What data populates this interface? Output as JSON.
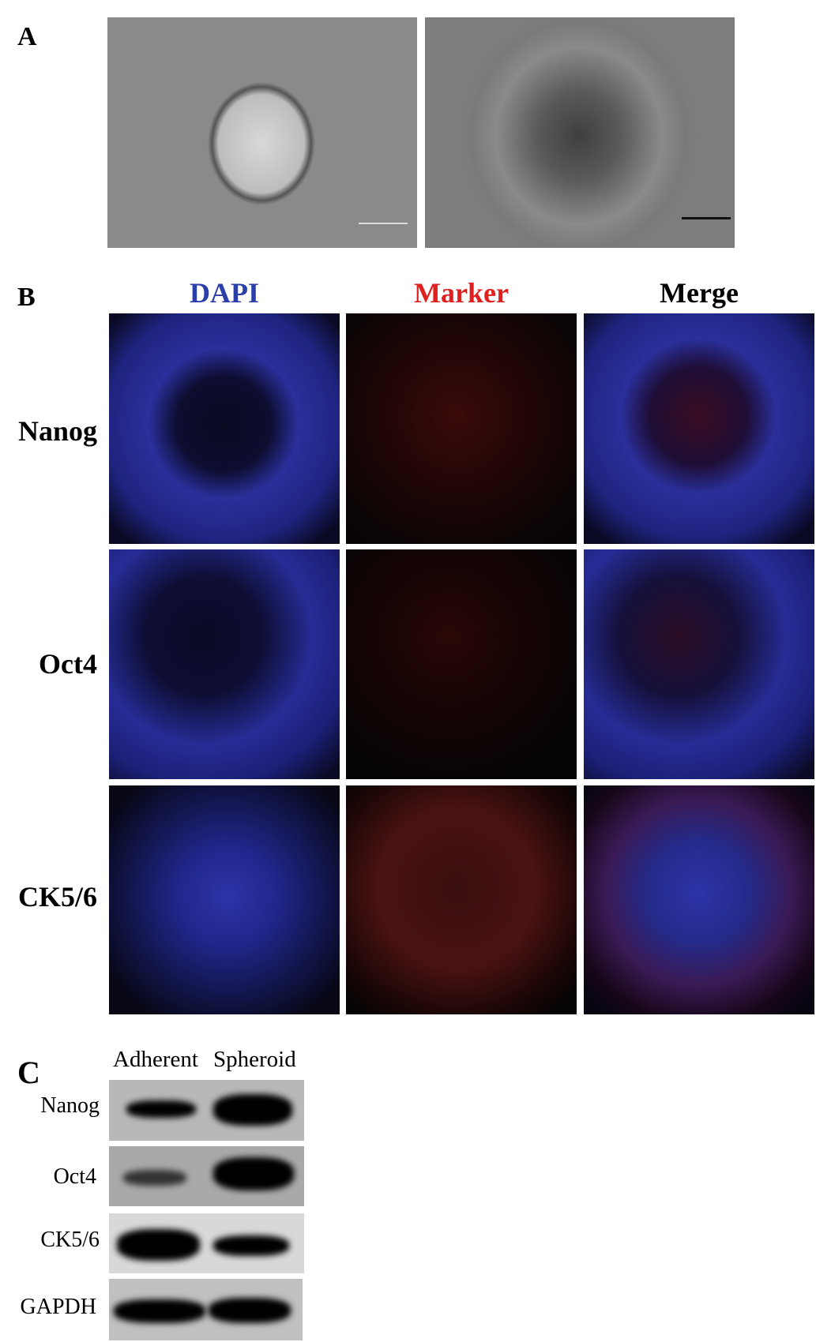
{
  "panel_labels": {
    "a": "A",
    "b": "B",
    "c": "C"
  },
  "panel_b": {
    "columns": [
      {
        "label": "DAPI",
        "color": "#2b3fa8"
      },
      {
        "label": "Marker",
        "color": "#e0201e"
      },
      {
        "label": "Merge",
        "color": "#000000"
      }
    ],
    "rows": [
      "Nanog",
      "Oct4",
      "CK5/6"
    ]
  },
  "panel_c": {
    "lanes": [
      "Adherent",
      "Spheroid"
    ],
    "proteins": [
      "Nanog",
      "Oct4",
      "CK5/6",
      "GAPDH"
    ]
  }
}
